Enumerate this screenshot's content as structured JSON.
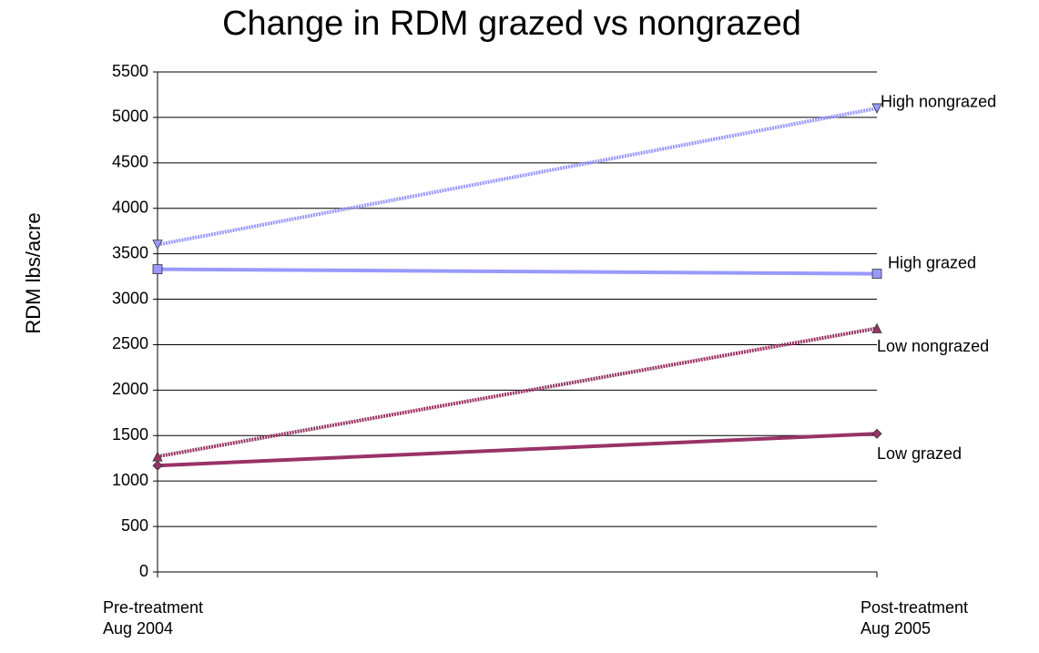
{
  "chart_data": {
    "type": "line",
    "title": "Change in RDM grazed vs nongrazed",
    "y_label": "RDM  lbs/acre",
    "categories": [
      "Pre-treatment\nAug 2004",
      "Post-treatment\nAug 2005"
    ],
    "series": [
      {
        "name": "High nongrazed",
        "color": "#9999ff",
        "style": "dotted",
        "marker": "triangle-down",
        "values": [
          3600,
          5100
        ]
      },
      {
        "name": "High grazed",
        "color": "#9999ff",
        "style": "solid",
        "marker": "square",
        "values": [
          3330,
          3280
        ]
      },
      {
        "name": "Low nongrazed",
        "color": "#993366",
        "style": "dotted",
        "marker": "triangle-up",
        "values": [
          1270,
          2680
        ]
      },
      {
        "name": "Low grazed",
        "color": "#993366",
        "style": "solid",
        "marker": "diamond",
        "values": [
          1170,
          1520
        ]
      }
    ],
    "ylim": [
      0,
      5500
    ],
    "yticks": [
      0,
      500,
      1000,
      1500,
      2000,
      2500,
      3000,
      3500,
      4000,
      4500,
      5000,
      5500
    ],
    "grid": true
  }
}
